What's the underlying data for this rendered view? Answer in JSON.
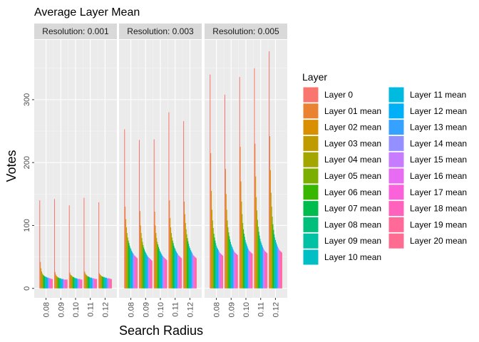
{
  "chart_data": {
    "type": "bar",
    "title": "Average Layer Mean",
    "xlabel": "Search Radius",
    "ylabel": "Votes",
    "ylim": [
      -15,
      395
    ],
    "y_ticks": [
      0,
      100,
      200,
      300
    ],
    "x_ticks": [
      "0.08",
      "0.09",
      "0.10",
      "0.11",
      "0.12"
    ],
    "grid": true,
    "legend": {
      "title": "Layer",
      "position": "right",
      "columns": 2,
      "entries": [
        "Layer 0",
        "Layer 01 mean",
        "Layer 02 mean",
        "Layer 03 mean",
        "Layer 04 mean",
        "Layer 05 mean",
        "Layer 06 mean",
        "Layer 07 mean",
        "Layer 08 mean",
        "Layer 09 mean",
        "Layer 10 mean",
        "Layer 11 mean",
        "Layer 12 mean",
        "Layer 13 mean",
        "Layer 14 mean",
        "Layer 15 mean",
        "Layer 16 mean",
        "Layer 17 mean",
        "Layer 18 mean",
        "Layer 19 mean",
        "Layer 20 mean"
      ],
      "colors": [
        "#F8766D",
        "#EA8331",
        "#D89000",
        "#C09B00",
        "#A3A500",
        "#7CAE00",
        "#39B600",
        "#00BB4E",
        "#00BF7D",
        "#00C1A3",
        "#00BFC4",
        "#00BAE0",
        "#00B0F6",
        "#35A2FF",
        "#9590FF",
        "#C77CFF",
        "#E76BF3",
        "#FA62DB",
        "#FF62BC",
        "#FF6A98",
        "#FF6C91"
      ]
    },
    "panels": [
      {
        "strip": "Resolution: 0.001",
        "groups": [
          {
            "x": "0.08",
            "values": [
              140,
              42,
              32,
              27,
              24,
              22,
              21,
              20,
              19,
              19,
              18,
              18,
              17,
              17,
              17,
              16,
              16,
              16,
              15,
              15,
              15
            ]
          },
          {
            "x": "0.09",
            "values": [
              142,
              26,
              22,
              20,
              19,
              18,
              17,
              17,
              16,
              16,
              16,
              15,
              15,
              15,
              15,
              14,
              14,
              14,
              14,
              14,
              14
            ]
          },
          {
            "x": "0.10",
            "values": [
              132,
              25,
              22,
              21,
              20,
              19,
              18,
              18,
              17,
              17,
              16,
              16,
              16,
              15,
              15,
              15,
              15,
              15,
              14,
              14,
              14
            ]
          },
          {
            "x": "0.11",
            "values": [
              144,
              27,
              24,
              22,
              21,
              20,
              19,
              19,
              18,
              18,
              17,
              17,
              17,
              16,
              16,
              16,
              16,
              15,
              15,
              15,
              15
            ]
          },
          {
            "x": "0.12",
            "values": [
              137,
              24,
              22,
              21,
              20,
              19,
              19,
              18,
              18,
              18,
              17,
              17,
              17,
              16,
              16,
              16,
              16,
              16,
              15,
              15,
              15
            ]
          }
        ]
      },
      {
        "strip": "Resolution: 0.003",
        "groups": [
          {
            "x": "0.08",
            "values": [
              253,
              130,
              110,
              97,
              88,
              81,
              76,
              72,
              68,
              65,
              63,
              60,
              58,
              56,
              55,
              53,
              52,
              51,
              50,
              49,
              48
            ]
          },
          {
            "x": "0.09",
            "values": [
              236,
              123,
              100,
              88,
              80,
              74,
              69,
              65,
              62,
              59,
              57,
              55,
              53,
              51,
              50,
              49,
              48,
              47,
              46,
              45,
              44
            ]
          },
          {
            "x": "0.10",
            "values": [
              237,
              122,
              100,
              88,
              80,
              74,
              70,
              66,
              63,
              60,
              58,
              56,
              54,
              52,
              51,
              50,
              49,
              48,
              47,
              46,
              45
            ]
          },
          {
            "x": "0.11",
            "values": [
              280,
              140,
              112,
              97,
              88,
              81,
              76,
              72,
              68,
              65,
              63,
              60,
              58,
              56,
              55,
              53,
              52,
              51,
              50,
              49,
              48
            ]
          },
          {
            "x": "0.12",
            "values": [
              266,
              138,
              118,
              104,
              94,
              86,
              80,
              75,
              71,
              67,
              64,
              61,
              59,
              57,
              55,
              53,
              52,
              51,
              50,
              49,
              48
            ]
          }
        ]
      },
      {
        "strip": "Resolution: 0.005",
        "groups": [
          {
            "x": "0.08",
            "values": [
              340,
              215,
              155,
              125,
              108,
              96,
              87,
              81,
              76,
              72,
              68,
              65,
              63,
              61,
              59,
              57,
              56,
              55,
              54,
              53,
              52
            ]
          },
          {
            "x": "0.09",
            "values": [
              308,
              190,
              150,
              125,
              108,
              97,
              89,
              83,
              78,
              74,
              70,
              67,
              65,
              62,
              60,
              58,
              57,
              56,
              55,
              54,
              53
            ]
          },
          {
            "x": "0.10",
            "values": [
              336,
              225,
              170,
              138,
              118,
              104,
              94,
              87,
              82,
              77,
              73,
              70,
              67,
              64,
              62,
              60,
              59,
              58,
              57,
              56,
              55
            ]
          },
          {
            "x": "0.11",
            "values": [
              350,
              230,
              178,
              145,
              124,
              109,
              98,
              90,
              84,
              79,
              75,
              72,
              69,
              66,
              64,
              62,
              60,
              59,
              58,
              57,
              56
            ]
          },
          {
            "x": "0.12",
            "values": [
              377,
              242,
              188,
              152,
              130,
              114,
              102,
              93,
              86,
              81,
              77,
              73,
              70,
              67,
              65,
              63,
              61,
              60,
              59,
              58,
              57
            ]
          }
        ]
      }
    ]
  }
}
